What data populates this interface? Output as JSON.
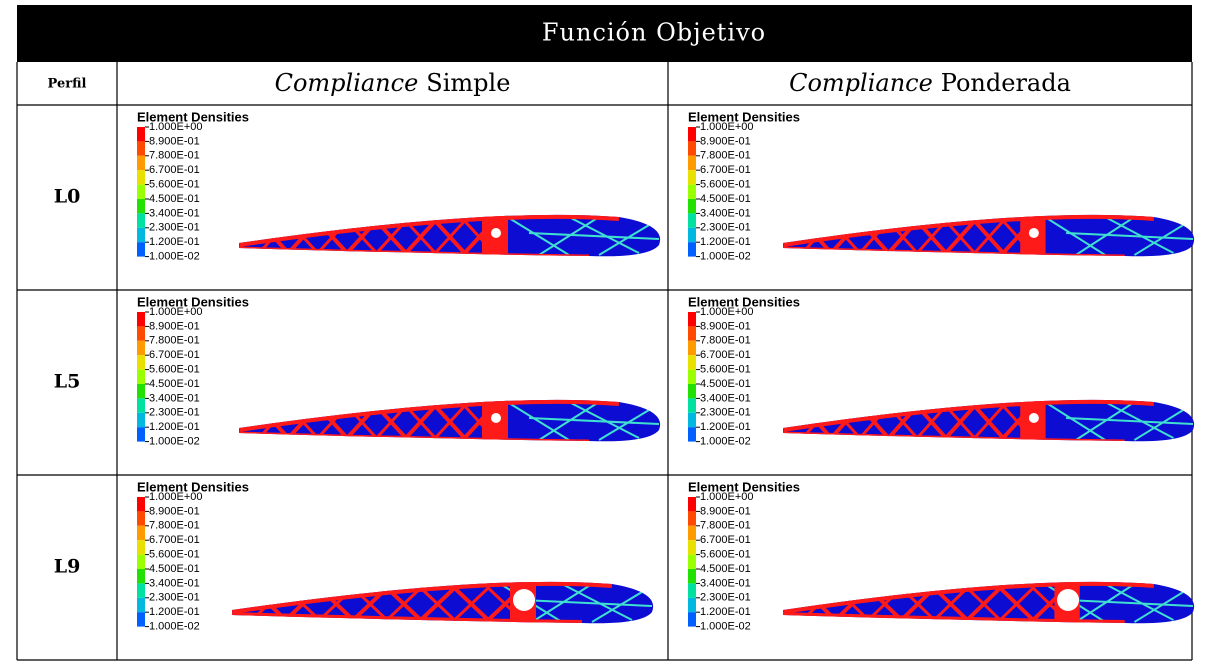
{
  "header": {
    "title": "Función Objetivo"
  },
  "table": {
    "columns": [
      {
        "text": "Perfil"
      },
      {
        "emphasis": "Compliance",
        "text": "Simple"
      },
      {
        "emphasis": "Compliance",
        "text": "Ponderada"
      }
    ],
    "rows": [
      {
        "label": "L0"
      },
      {
        "label": "L5"
      },
      {
        "label": "L9"
      }
    ]
  },
  "legend": {
    "title": "Element Densities",
    "levels": [
      "1.000E+00",
      "8.900E-01",
      "7.800E-01",
      "6.700E-01",
      "5.600E-01",
      "4.500E-01",
      "3.400E-01",
      "2.300E-01",
      "1.200E-01",
      "1.000E-02"
    ]
  }
}
